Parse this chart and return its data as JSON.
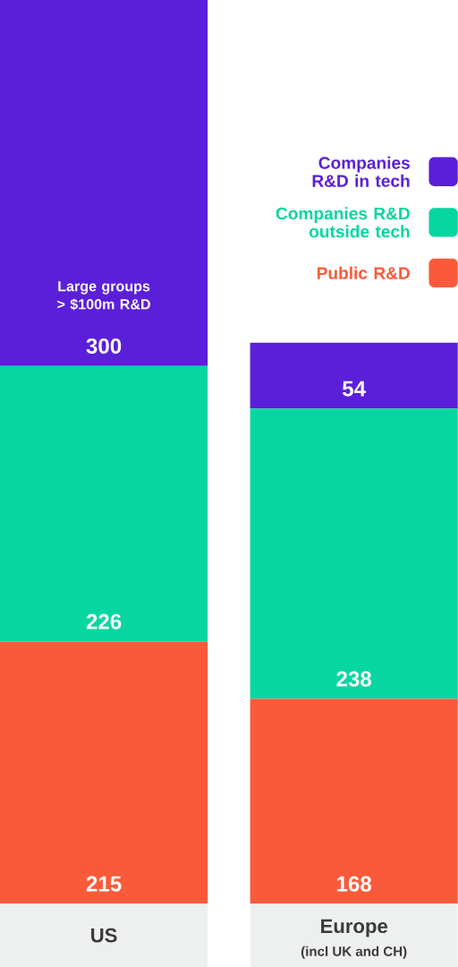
{
  "chart_data": {
    "type": "bar",
    "stacked": true,
    "categories": [
      "US",
      "Europe"
    ],
    "series": [
      {
        "name": "Public R&D",
        "color": "#fa5a3a",
        "values": [
          215,
          168
        ]
      },
      {
        "name": "Companies R&D outside tech",
        "color": "#07d6a0",
        "values": [
          226,
          238
        ]
      },
      {
        "name": "Companies R&D in tech",
        "color": "#5b1fd9",
        "values": [
          300,
          54
        ]
      }
    ],
    "data_labels": true,
    "legend": "top right",
    "annotations": [
      "Large groups > $100m R&D",
      "(incl UK and CH)"
    ]
  }
}
